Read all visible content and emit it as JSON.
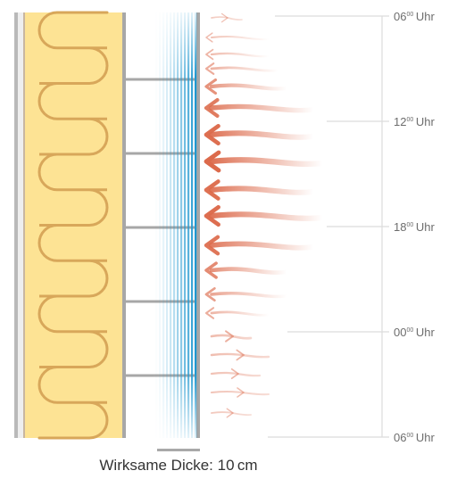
{
  "time_axis": [
    {
      "hour": "06",
      "minutes": "00",
      "unit": "Uhr"
    },
    {
      "hour": "12",
      "minutes": "00",
      "unit": "Uhr"
    },
    {
      "hour": "18",
      "minutes": "00",
      "unit": "Uhr"
    },
    {
      "hour": "00",
      "minutes": "00",
      "unit": "Uhr"
    },
    {
      "hour": "06",
      "minutes": "00",
      "unit": "Uhr"
    }
  ],
  "caption": "Wirksame Dicke: 10 cm",
  "arrows": [
    {
      "direction": "out",
      "intensity": 0.1
    },
    {
      "direction": "in",
      "intensity": 0.15
    },
    {
      "direction": "in",
      "intensity": 0.22
    },
    {
      "direction": "in",
      "intensity": 0.32
    },
    {
      "direction": "in",
      "intensity": 0.58
    },
    {
      "direction": "in",
      "intensity": 0.82
    },
    {
      "direction": "in",
      "intensity": 0.95
    },
    {
      "direction": "in",
      "intensity": 1.0
    },
    {
      "direction": "in",
      "intensity": 0.93
    },
    {
      "direction": "in",
      "intensity": 0.96
    },
    {
      "direction": "in",
      "intensity": 0.88
    },
    {
      "direction": "in",
      "intensity": 0.66
    },
    {
      "direction": "in",
      "intensity": 0.45
    },
    {
      "direction": "in",
      "intensity": 0.3
    },
    {
      "direction": "out",
      "intensity": 0.28
    },
    {
      "direction": "out",
      "intensity": 0.24
    },
    {
      "direction": "out",
      "intensity": 0.2
    },
    {
      "direction": "out",
      "intensity": 0.17
    },
    {
      "direction": "out",
      "intensity": 0.13
    }
  ],
  "colors": {
    "insulation": "#fde394",
    "insulation_wave": "#d8a75a",
    "frame": "#a7a7a7",
    "heat_arrow": "#dc6a4b",
    "cool_gradient": "#1f98d0",
    "time_line": "#dcdcdc",
    "text": "#6d6d6d"
  }
}
